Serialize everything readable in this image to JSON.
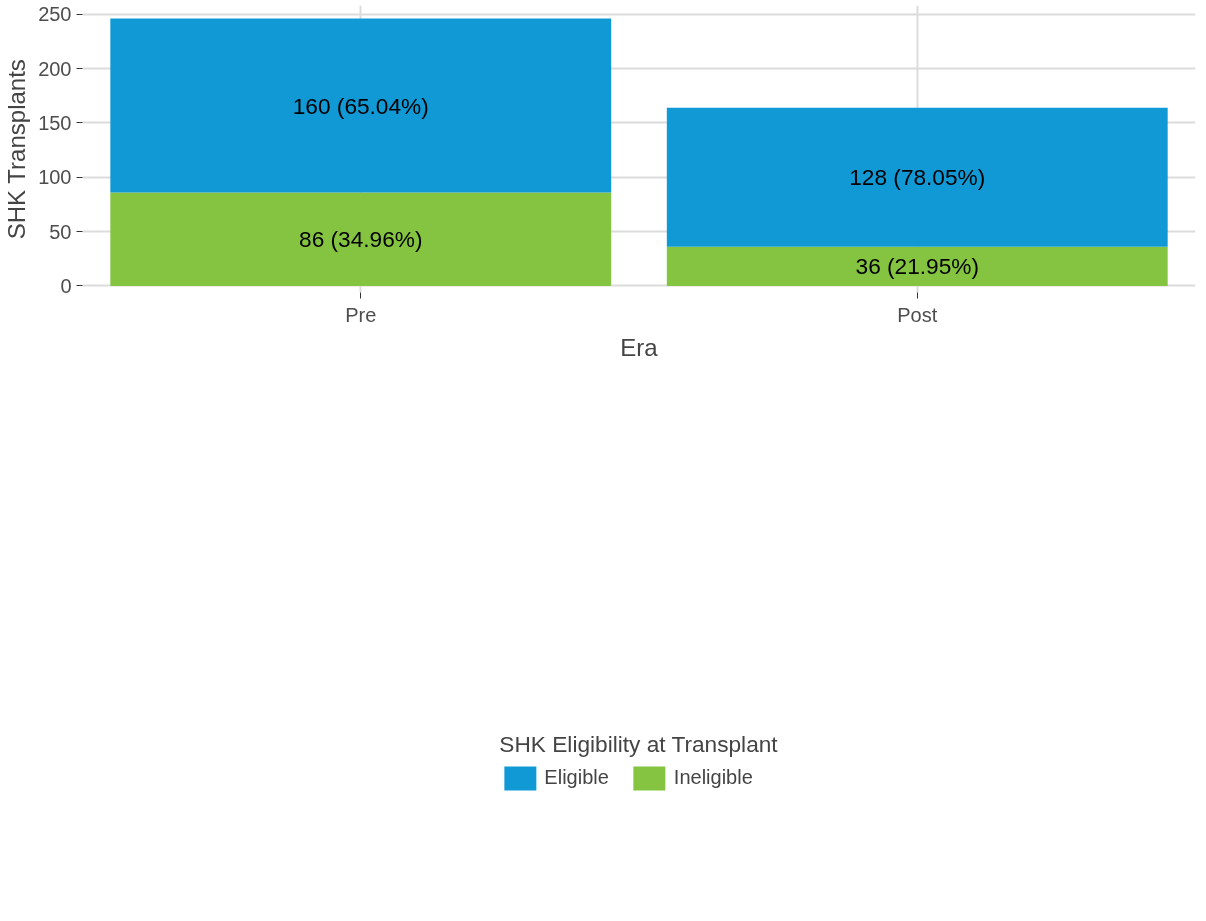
{
  "chart_data": {
    "type": "bar",
    "stacked": true,
    "xlabel": "Era",
    "ylabel": "SHK Transplants",
    "legend_title": "SHK Eligibility at Transplant",
    "categories": [
      "Pre",
      "Post"
    ],
    "series": [
      {
        "name": "Ineligible",
        "color": "#84c441",
        "values": [
          86,
          36
        ],
        "value_labels": [
          "86 (34.96%)",
          "36 (21.95%)"
        ]
      },
      {
        "name": "Eligible",
        "color": "#1199d6",
        "values": [
          160,
          128
        ],
        "value_labels": [
          "160 (65.04%)",
          "128 (78.05%)"
        ]
      }
    ],
    "ylim": [
      -6,
      258
    ],
    "yticks": [
      0,
      50,
      100,
      150,
      200,
      250
    ],
    "grid": true,
    "legend": "bottom"
  }
}
